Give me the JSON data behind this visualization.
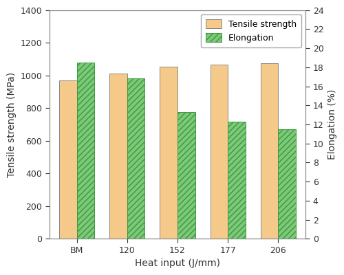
{
  "categories": [
    "BM",
    "120",
    "152",
    "177",
    "206"
  ],
  "tensile_strength": [
    970,
    1010,
    1055,
    1068,
    1075
  ],
  "elongation": [
    18.5,
    16.8,
    13.3,
    12.3,
    11.5
  ],
  "tensile_color": "#F5C98A",
  "elongation_facecolor": "#7DC87A",
  "elongation_edgecolor": "#3A9A3A",
  "hatch_pattern": "////",
  "xlabel": "Heat input (J/mm)",
  "ylabel_left": "Tensile strength (MPa)",
  "ylabel_right": "Elongation (%)",
  "ylim_left": [
    0,
    1400
  ],
  "ylim_right": [
    0,
    24
  ],
  "yticks_left": [
    0,
    200,
    400,
    600,
    800,
    1000,
    1200,
    1400
  ],
  "yticks_right": [
    0,
    2,
    4,
    6,
    8,
    10,
    12,
    14,
    16,
    18,
    20,
    22,
    24
  ],
  "legend_tensile": "Tensile strength",
  "legend_elongation": "Elongation",
  "bar_width": 0.35,
  "background_color": "#ffffff",
  "spine_color": "#888888",
  "tick_label_color": "#333333"
}
